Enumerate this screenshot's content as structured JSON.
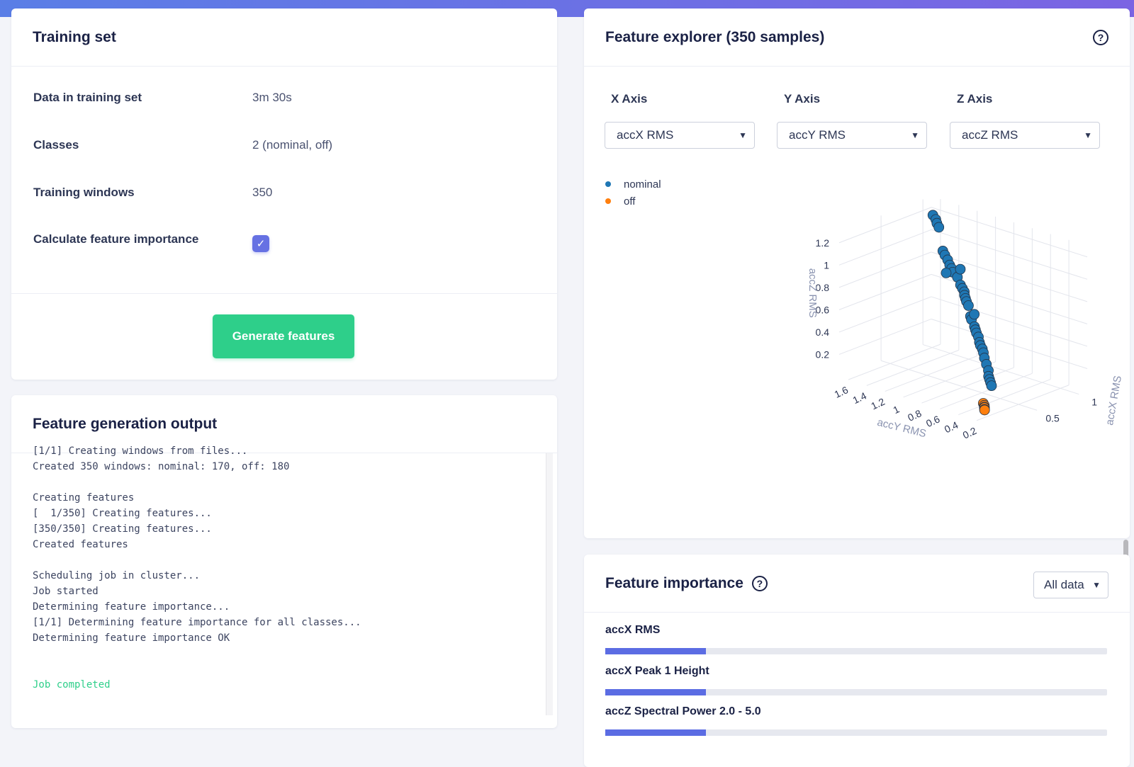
{
  "training": {
    "title": "Training set",
    "rows": [
      {
        "label": "Data in training set",
        "value": "3m 30s"
      },
      {
        "label": "Classes",
        "value": "2 (nominal, off)"
      },
      {
        "label": "Training windows",
        "value": "350"
      },
      {
        "label": "Calculate feature importance",
        "checked": true
      }
    ],
    "button": "Generate features"
  },
  "output": {
    "title": "Feature generation output",
    "lines": [
      "[1/1] Creating windows from files...",
      "Created 350 windows: nominal: 170, off: 180",
      "",
      "Creating features",
      "[  1/350] Creating features...",
      "[350/350] Creating features...",
      "Created features",
      "",
      "Scheduling job in cluster...",
      "Job started",
      "Determining feature importance...",
      "[1/1] Determining feature importance for all classes...",
      "Determining feature importance OK",
      "",
      ""
    ],
    "final": "Job completed"
  },
  "explorer": {
    "title": "Feature explorer (350 samples)",
    "axes": [
      {
        "label": "X Axis",
        "value": "accX RMS"
      },
      {
        "label": "Y Axis",
        "value": "accY RMS"
      },
      {
        "label": "Z Axis",
        "value": "accZ RMS"
      }
    ],
    "legend": [
      {
        "name": "nominal",
        "color": "#1f77b4"
      },
      {
        "name": "off",
        "color": "#ff7f0e"
      }
    ]
  },
  "chart_data": {
    "type": "scatter",
    "title": "",
    "xlabel": "accX RMS",
    "ylabel": "accY RMS",
    "zlabel": "accZ RMS",
    "x_ticks": [
      "0.5",
      "1"
    ],
    "y_ticks": [
      "0.2",
      "0.4",
      "0.6",
      "0.8",
      "1",
      "1.2",
      "1.4",
      "1.6"
    ],
    "z_ticks": [
      "0.2",
      "0.4",
      "0.6",
      "0.8",
      "1",
      "1.2"
    ],
    "series": [
      {
        "name": "nominal",
        "color": "#1f77b4",
        "points": [
          {
            "x": 0.9,
            "y": 1.5,
            "z": 1.24
          },
          {
            "x": 0.88,
            "y": 1.45,
            "z": 1.22
          },
          {
            "x": 0.86,
            "y": 1.42,
            "z": 1.2
          },
          {
            "x": 0.84,
            "y": 1.38,
            "z": 1.18
          },
          {
            "x": 0.8,
            "y": 1.3,
            "z": 1.0
          },
          {
            "x": 0.78,
            "y": 1.26,
            "z": 0.98
          },
          {
            "x": 0.77,
            "y": 1.22,
            "z": 0.95
          },
          {
            "x": 0.75,
            "y": 1.18,
            "z": 0.92
          },
          {
            "x": 0.74,
            "y": 1.15,
            "z": 0.9
          },
          {
            "x": 0.72,
            "y": 1.12,
            "z": 0.88
          },
          {
            "x": 0.73,
            "y": 1.2,
            "z": 0.85
          },
          {
            "x": 0.7,
            "y": 1.05,
            "z": 0.86
          },
          {
            "x": 0.68,
            "y": 1.0,
            "z": 0.95
          },
          {
            "x": 0.66,
            "y": 0.98,
            "z": 0.82
          },
          {
            "x": 0.65,
            "y": 0.95,
            "z": 0.8
          },
          {
            "x": 0.64,
            "y": 0.92,
            "z": 0.78
          },
          {
            "x": 0.62,
            "y": 0.9,
            "z": 0.76
          },
          {
            "x": 0.61,
            "y": 0.88,
            "z": 0.74
          },
          {
            "x": 0.6,
            "y": 0.86,
            "z": 0.72
          },
          {
            "x": 0.58,
            "y": 0.82,
            "z": 0.7
          },
          {
            "x": 0.56,
            "y": 0.78,
            "z": 0.62
          },
          {
            "x": 0.55,
            "y": 0.76,
            "z": 0.6
          },
          {
            "x": 0.54,
            "y": 0.72,
            "z": 0.66
          },
          {
            "x": 0.52,
            "y": 0.7,
            "z": 0.56
          },
          {
            "x": 0.51,
            "y": 0.68,
            "z": 0.54
          },
          {
            "x": 0.5,
            "y": 0.66,
            "z": 0.52
          },
          {
            "x": 0.48,
            "y": 0.62,
            "z": 0.5
          },
          {
            "x": 0.47,
            "y": 0.6,
            "z": 0.46
          },
          {
            "x": 0.46,
            "y": 0.58,
            "z": 0.44
          },
          {
            "x": 0.45,
            "y": 0.55,
            "z": 0.42
          },
          {
            "x": 0.43,
            "y": 0.52,
            "z": 0.4
          },
          {
            "x": 0.42,
            "y": 0.5,
            "z": 0.36
          },
          {
            "x": 0.4,
            "y": 0.46,
            "z": 0.32
          },
          {
            "x": 0.38,
            "y": 0.42,
            "z": 0.28
          },
          {
            "x": 0.36,
            "y": 0.4,
            "z": 0.24
          },
          {
            "x": 0.35,
            "y": 0.38,
            "z": 0.22
          },
          {
            "x": 0.34,
            "y": 0.36,
            "z": 0.2
          },
          {
            "x": 0.33,
            "y": 0.34,
            "z": 0.18
          }
        ]
      },
      {
        "name": "off",
        "color": "#ff7f0e",
        "points": [
          {
            "x": 0.1,
            "y": 0.22,
            "z": 0.12
          },
          {
            "x": 0.09,
            "y": 0.2,
            "z": 0.11
          },
          {
            "x": 0.08,
            "y": 0.19,
            "z": 0.1
          },
          {
            "x": 0.07,
            "y": 0.18,
            "z": 0.1
          },
          {
            "x": 0.06,
            "y": 0.17,
            "z": 0.09
          },
          {
            "x": 0.05,
            "y": 0.16,
            "z": 0.09
          }
        ]
      }
    ]
  },
  "importance": {
    "title": "Feature importance",
    "filter": "All data",
    "features": [
      {
        "name": "accX RMS",
        "value": 0.2
      },
      {
        "name": "accX Peak 1 Height",
        "value": 0.2
      },
      {
        "name": "accZ Spectral Power 2.0 - 5.0",
        "value": 0.2
      }
    ]
  }
}
